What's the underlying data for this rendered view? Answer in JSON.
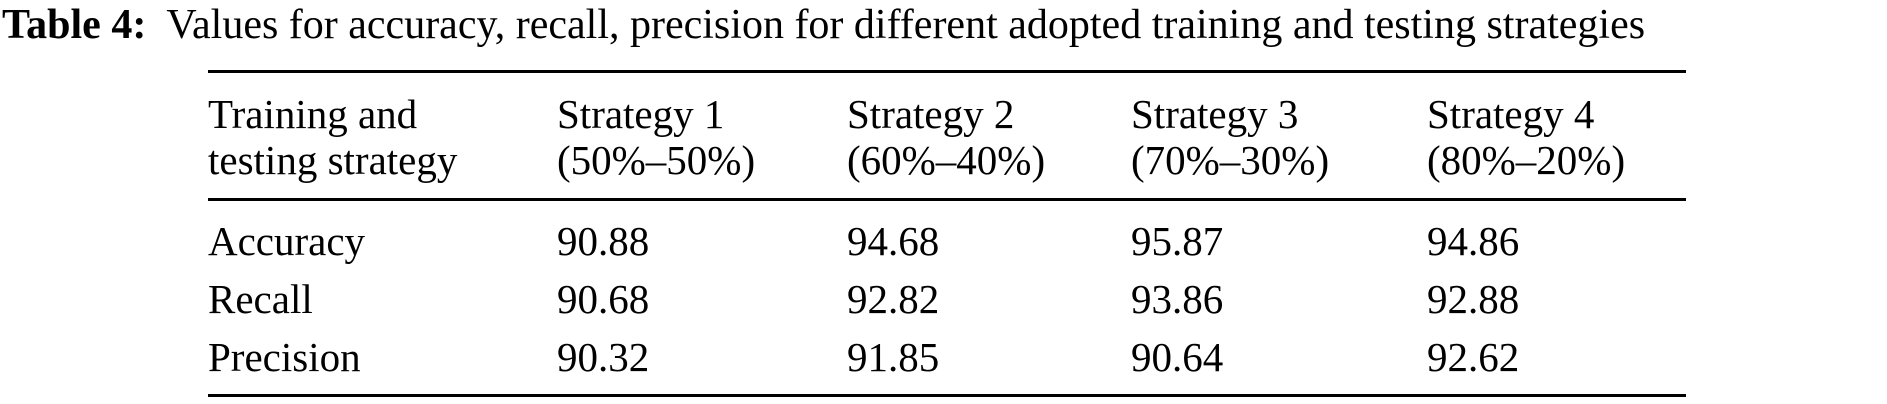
{
  "caption": {
    "label": "Table 4:",
    "text": "Values for accuracy, recall, precision for different adopted training and testing strategies"
  },
  "table": {
    "columns": [
      {
        "line1": "Training and",
        "line2": "testing strategy"
      },
      {
        "line1": "Strategy 1",
        "line2": "(50%–50%)"
      },
      {
        "line1": "Strategy 2",
        "line2": "(60%–40%)"
      },
      {
        "line1": "Strategy 3",
        "line2": "(70%–30%)"
      },
      {
        "line1": "Strategy 4",
        "line2": "(80%–20%)"
      }
    ],
    "rows": [
      {
        "label": "Accuracy",
        "values": [
          "90.88",
          "94.68",
          "95.87",
          "94.86"
        ]
      },
      {
        "label": "Recall",
        "values": [
          "90.68",
          "92.82",
          "93.86",
          "92.88"
        ]
      },
      {
        "label": "Precision",
        "values": [
          "90.32",
          "91.85",
          "90.64",
          "92.62"
        ]
      }
    ]
  },
  "colors": {
    "text": "#000000",
    "background": "#ffffff",
    "rule": "#000000"
  }
}
